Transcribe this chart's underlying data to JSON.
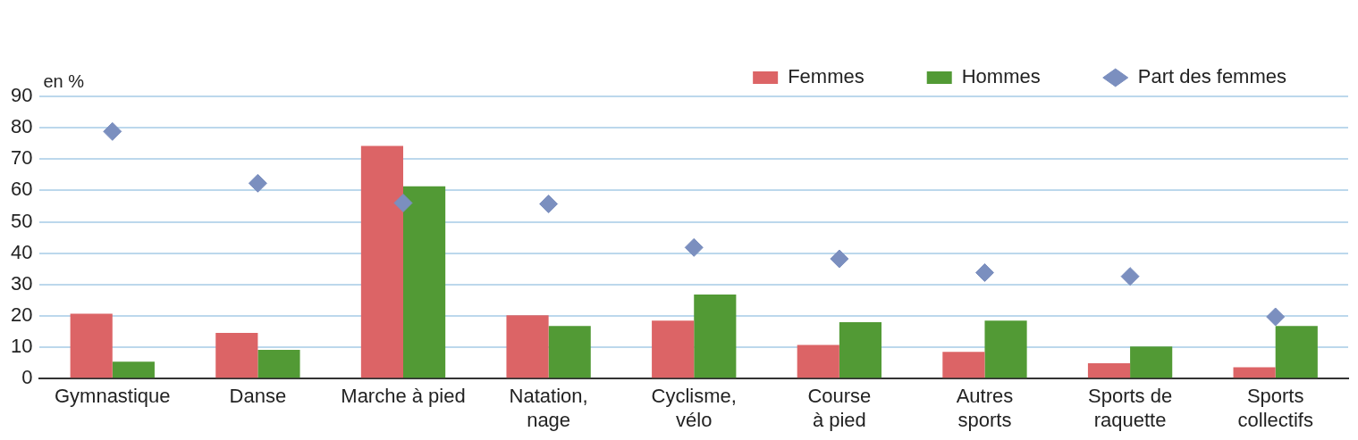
{
  "chart_data": {
    "type": "bar",
    "ylabel": "en %",
    "categories": [
      "Gymnastique",
      "Danse",
      "Marche à pied",
      "Natation,\nnage",
      "Cyclisme,\nvélo",
      "Course\nà pied",
      "Autres\nsports",
      "Sports de\nraquette",
      "Sports\ncollectifs"
    ],
    "series": [
      {
        "name": "Femmes",
        "color": "#dc6466",
        "values": [
          20.7,
          14.6,
          74.2,
          20.2,
          18.5,
          10.7,
          8.5,
          4.9,
          3.6
        ]
      },
      {
        "name": "Hommes",
        "color": "#529a35",
        "values": [
          5.4,
          9.2,
          61.3,
          16.8,
          26.8,
          18,
          18.5,
          10.2,
          16.8
        ]
      },
      {
        "name": "Part des femmes",
        "type": "scatter",
        "color": "#7b8fbf",
        "values": [
          78.8,
          62.3,
          56,
          55.7,
          41.8,
          38.2,
          33.8,
          32.6,
          19.7
        ]
      }
    ],
    "ylim": [
      0,
      90
    ],
    "yticks": [
      0,
      10,
      20,
      30,
      40,
      50,
      60,
      70,
      80,
      90
    ],
    "grid": "y",
    "legend": "top right",
    "marker": "diamond"
  }
}
